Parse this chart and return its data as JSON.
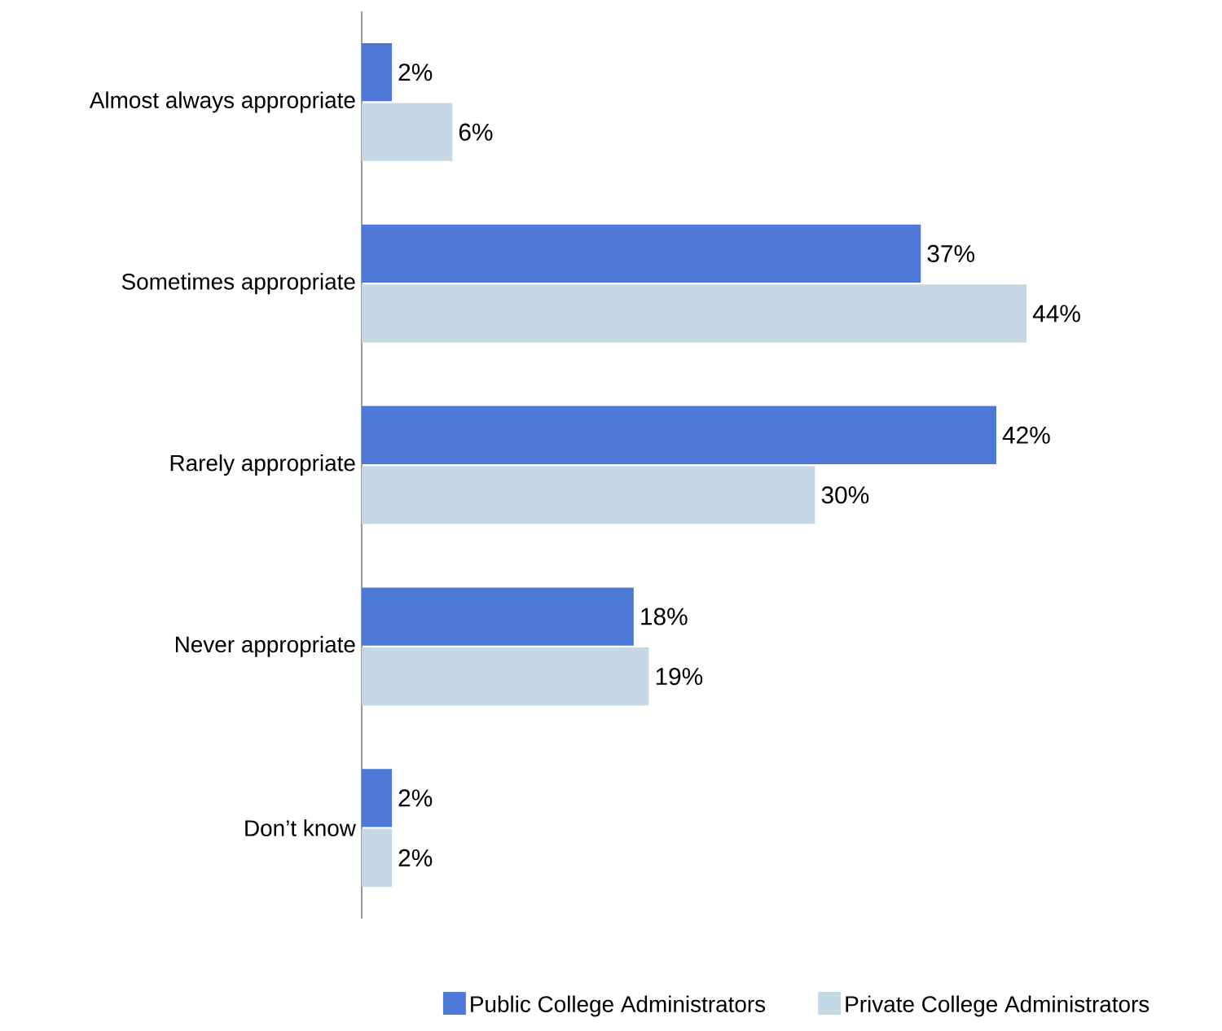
{
  "chart_data": {
    "type": "bar",
    "orientation": "horizontal",
    "categories": [
      "Almost always appropriate",
      "Sometimes appropriate",
      "Rarely appropriate",
      "Never appropriate",
      "Don’t know"
    ],
    "series": [
      {
        "name": "Public College Administrators",
        "color": "#4e78d8",
        "values": [
          2,
          37,
          42,
          18,
          2
        ],
        "value_labels": [
          "2%",
          "37%",
          "42%",
          "18%",
          "2%"
        ]
      },
      {
        "name": "Private College Administrators",
        "color": "#c5d8e6",
        "values": [
          6,
          44,
          30,
          19,
          2
        ],
        "value_labels": [
          "6%",
          "44%",
          "30%",
          "19%",
          "2%"
        ]
      }
    ],
    "legend": "bottom"
  }
}
